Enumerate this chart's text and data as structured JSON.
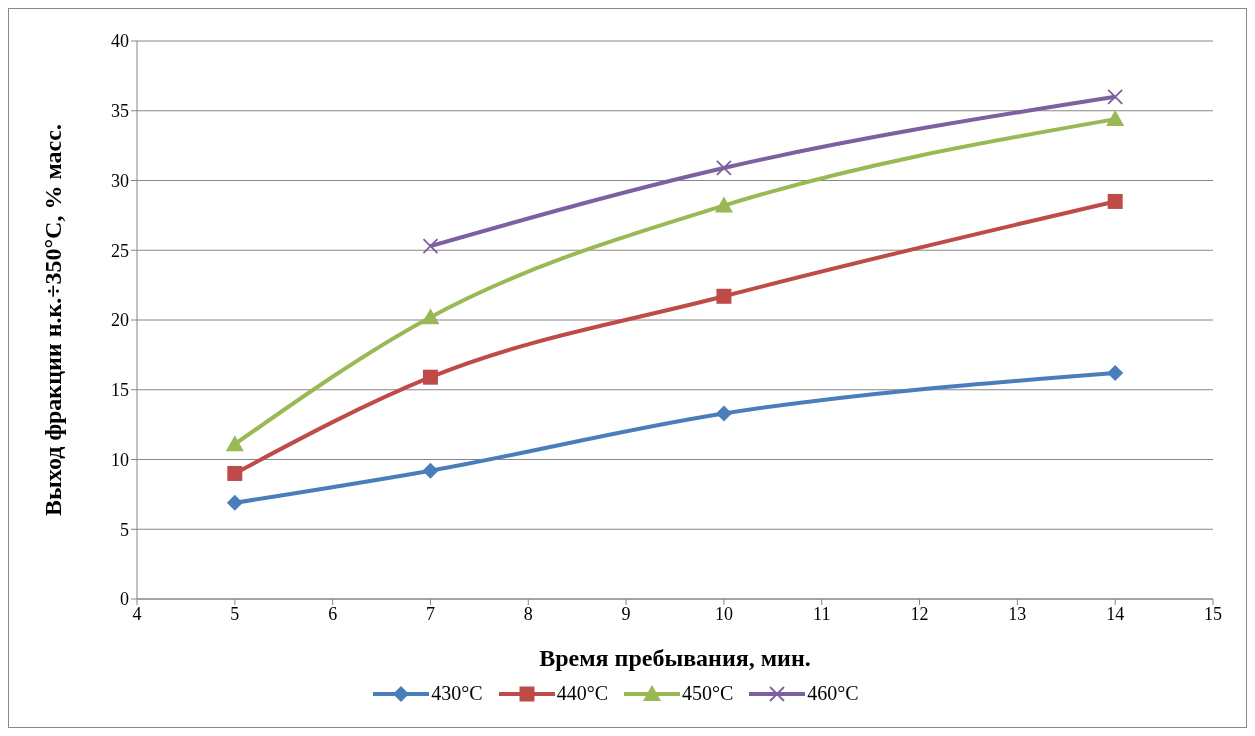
{
  "chart_data": {
    "type": "line",
    "xlabel": "Время пребывания, мин.",
    "ylabel": "Выход фракции н.к.÷350°С, % масс.",
    "xlim": [
      4,
      15
    ],
    "xticks": [
      4,
      5,
      6,
      7,
      8,
      9,
      10,
      11,
      12,
      13,
      14,
      15
    ],
    "ylim": [
      0,
      40
    ],
    "yticks": [
      0,
      5,
      10,
      15,
      20,
      25,
      30,
      35,
      40
    ],
    "grid": "y",
    "legend": "bottom",
    "series": [
      {
        "name": "430°С",
        "color": "#4a7ebb",
        "marker": "diamond",
        "x": [
          5,
          7,
          10,
          14
        ],
        "values": [
          6.9,
          9.2,
          13.3,
          16.2
        ]
      },
      {
        "name": "440°С",
        "color": "#be4b48",
        "marker": "square",
        "x": [
          5,
          7,
          10,
          14
        ],
        "values": [
          9.0,
          15.9,
          21.7,
          28.5
        ]
      },
      {
        "name": "450°С",
        "color": "#98b954",
        "marker": "triangle",
        "x": [
          5,
          7,
          10,
          14
        ],
        "values": [
          11.1,
          20.2,
          28.2,
          34.4
        ]
      },
      {
        "name": "460°С",
        "color": "#7d60a0",
        "marker": "cross",
        "x": [
          7,
          10,
          14
        ],
        "values": [
          25.3,
          30.9,
          36.0
        ]
      }
    ]
  }
}
